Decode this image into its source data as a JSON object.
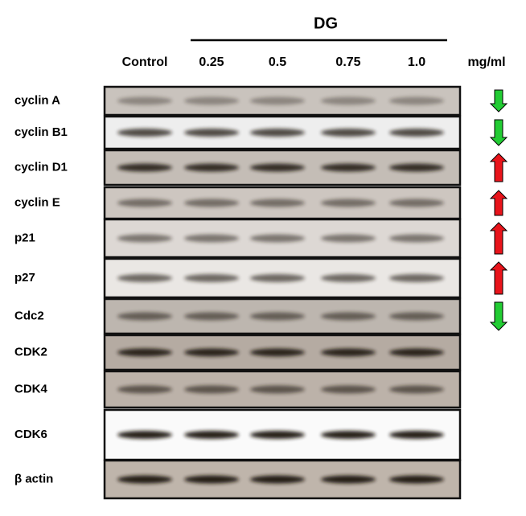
{
  "header": {
    "group": "DG",
    "columns": [
      "Control",
      "0.25",
      "0.5",
      "0.75",
      "1.0"
    ],
    "unit": "mg/ml"
  },
  "rows": [
    {
      "label": "cyclin A",
      "arrow": "down"
    },
    {
      "label": "cyclin B1",
      "arrow": "down"
    },
    {
      "label": "cyclin D1",
      "arrow": "up"
    },
    {
      "label": "cyclin E",
      "arrow": "up"
    },
    {
      "label": "p21",
      "arrow": "up"
    },
    {
      "label": "p27",
      "arrow": "up"
    },
    {
      "label": "Cdc2",
      "arrow": "down"
    },
    {
      "label": "CDK2"
    },
    {
      "label": "CDK4"
    },
    {
      "label": "CDK6"
    },
    {
      "label": "β actin"
    }
  ]
}
